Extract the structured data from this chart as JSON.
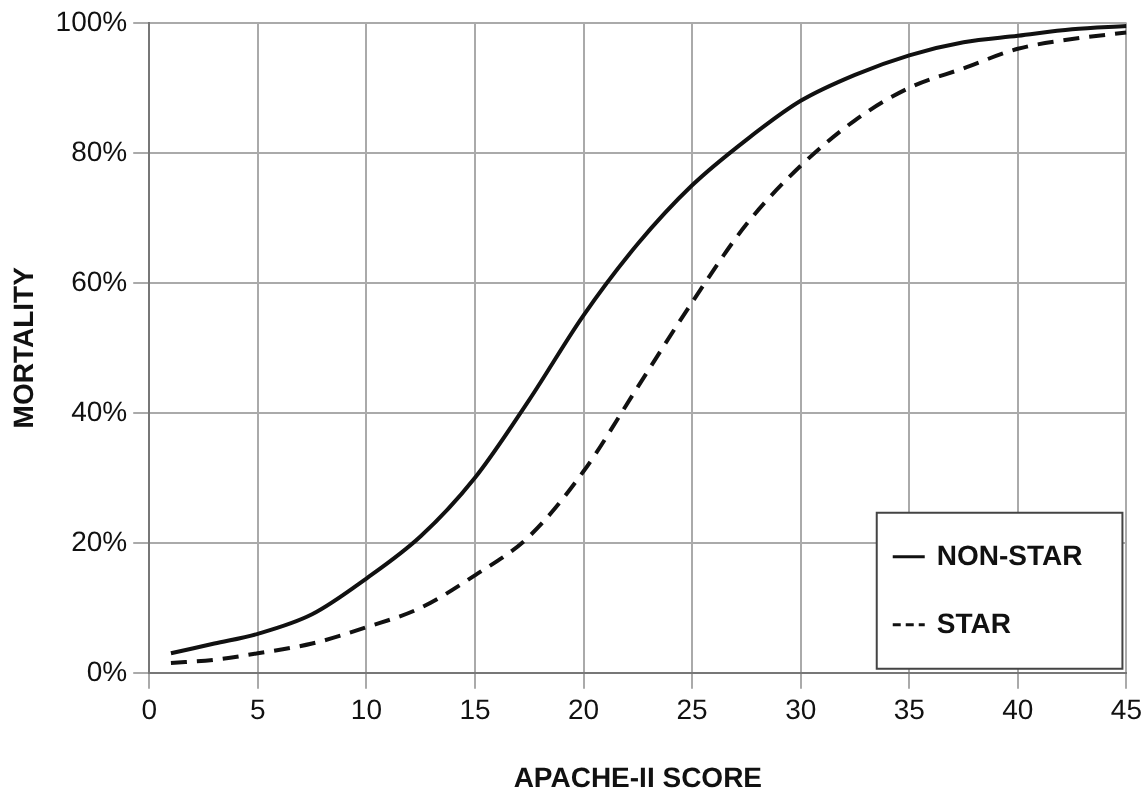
{
  "chart_data": {
    "type": "line",
    "xlabel": "APACHE-II SCORE",
    "ylabel": "MORTALITY",
    "xlim": [
      0,
      45
    ],
    "xticks": [
      0,
      5,
      10,
      15,
      20,
      25,
      30,
      35,
      40,
      45
    ],
    "ylim": [
      0,
      100
    ],
    "yticks": [
      {
        "value": 0,
        "label": "0%"
      },
      {
        "value": 20,
        "label": "20%"
      },
      {
        "value": 40,
        "label": "40%"
      },
      {
        "value": 60,
        "label": "60%"
      },
      {
        "value": 80,
        "label": "80%"
      },
      {
        "value": 100,
        "label": "100%"
      }
    ],
    "grid": true,
    "legend": "bottom right",
    "marker": "none",
    "series": [
      {
        "name": "NON-STAR",
        "color": "#111111",
        "line_style": "solid",
        "x": [
          1,
          3,
          5,
          7.5,
          10,
          12.5,
          15,
          17.5,
          20,
          22.5,
          25,
          27.5,
          30,
          32.5,
          35,
          37.5,
          40,
          42.5,
          45
        ],
        "values": [
          3,
          4.5,
          6,
          9,
          14.5,
          21,
          30,
          42,
          55,
          66,
          75,
          82,
          88,
          92,
          95,
          97,
          98,
          99,
          99.5
        ]
      },
      {
        "name": "STAR",
        "color": "#111111",
        "line_style": "dashed",
        "x": [
          1,
          3,
          5,
          7.5,
          10,
          12.5,
          15,
          17.5,
          20,
          22.5,
          25,
          27.5,
          30,
          32.5,
          35,
          37.5,
          40,
          42.5,
          45
        ],
        "values": [
          1.5,
          2,
          3,
          4.5,
          7,
          10,
          15,
          21,
          31,
          44,
          57,
          69,
          78,
          85,
          90,
          93,
          96,
          97.5,
          98.5
        ]
      }
    ]
  }
}
